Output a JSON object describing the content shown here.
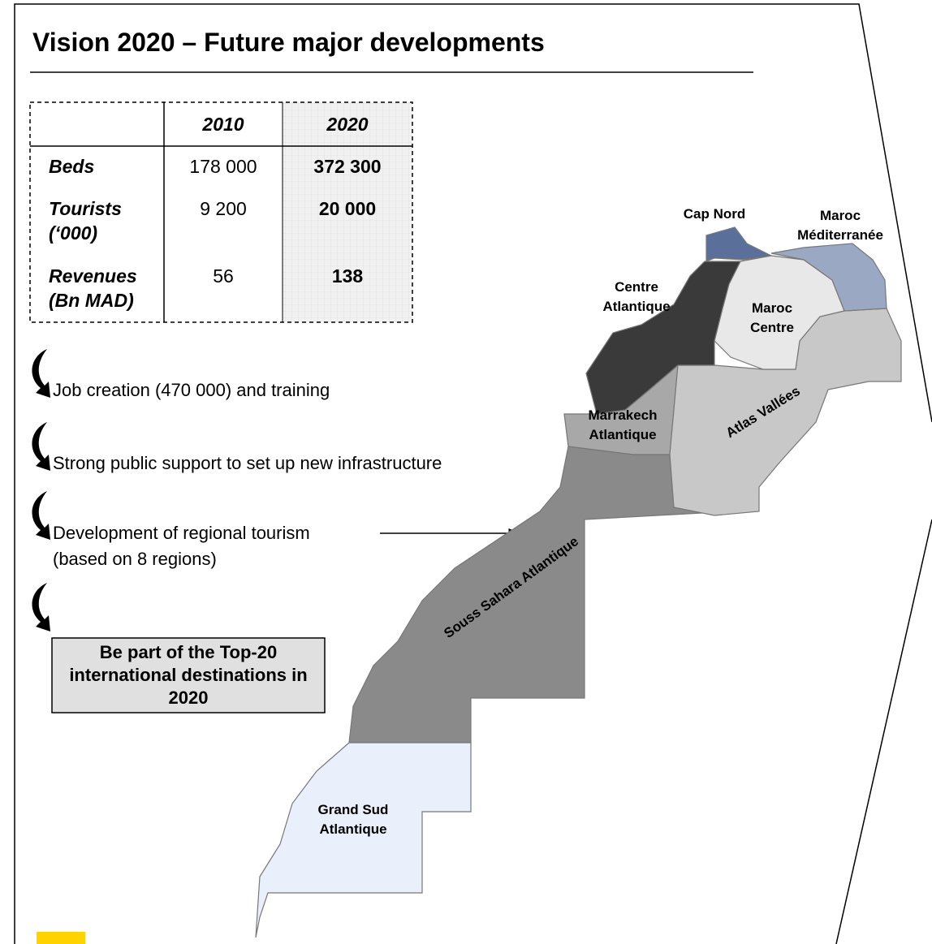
{
  "header": {
    "title": "Vision 2020 – Future major developments"
  },
  "table": {
    "header": [
      "2010",
      "2020"
    ],
    "rows": [
      [
        "Beds",
        "178 000",
        "372 300"
      ],
      [
        "Tourists (‘000)",
        "9 200",
        "20 000"
      ],
      [
        "Revenues (Bn MAD)",
        "56",
        "138"
      ]
    ]
  },
  "bullets": [
    {
      "lines": [
        "Job creation (470 000) and training"
      ]
    },
    {
      "lines": [
        "Strong public support to set up new infrastructure"
      ]
    },
    {
      "lines": [
        "Development of regional tourism",
        "(based on 8 regions)"
      ]
    }
  ],
  "callout": "Be part of the Top-20 international destinations in 2020",
  "map": {
    "regions": [
      "Cap Nord",
      "Maroc Méditerranée",
      "Centre Atlantique",
      "Maroc Centre",
      "Marrakech Atlantique",
      "Atlas Vallées",
      "Souss Sahara Atlantique",
      "Grand Sud Atlantique"
    ]
  }
}
